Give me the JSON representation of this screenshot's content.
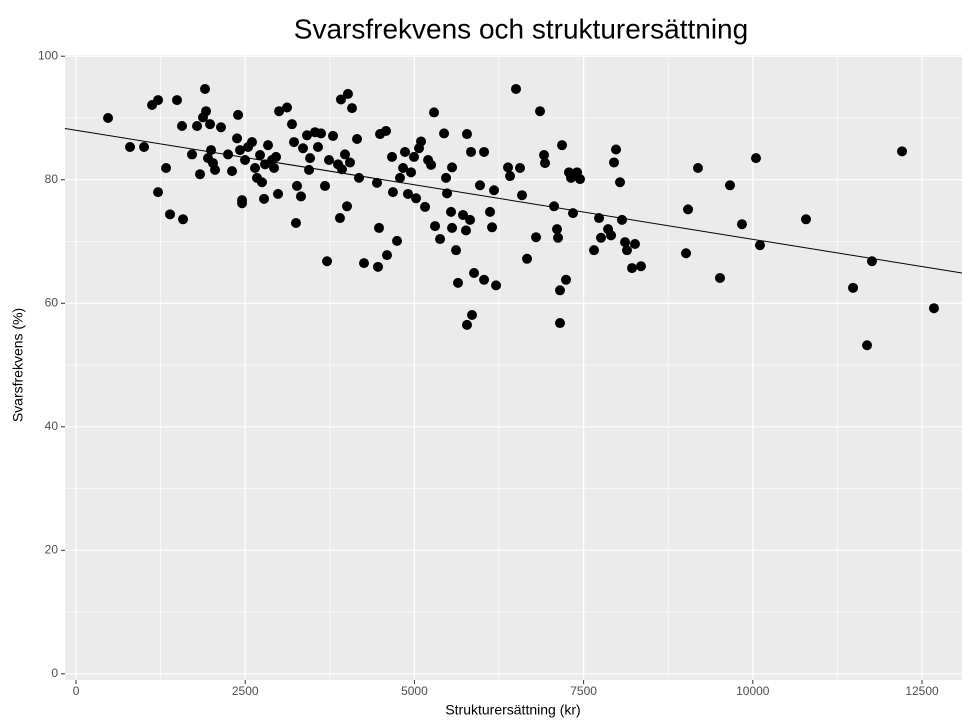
{
  "chart_data": {
    "type": "scatter",
    "title": "Svarsfrekvens och strukturersättning",
    "x_label": "Strukturersättning (kr)",
    "y_label": "Svarsfrekvens (%)",
    "xlim": [
      -163,
      13091
    ],
    "ylim": [
      -1,
      100.2
    ],
    "xticks": [
      0,
      2500,
      5000,
      7500,
      10000,
      12500
    ],
    "yticks": [
      0,
      20,
      40,
      60,
      80,
      100
    ],
    "grid": true,
    "color": "#000000",
    "x": [
      473,
      798,
      1005,
      1123,
      1212,
      1212,
      1330,
      1389,
      1492,
      1566,
      1581,
      1714,
      1788,
      1832,
      1876,
      1906,
      1921,
      1950,
      1980,
      1995,
      2024,
      2054,
      2142,
      2246,
      2305,
      2394,
      2379,
      2423,
      2453,
      2453,
      2497,
      2542,
      2600,
      2645,
      2674,
      2719,
      2748,
      2793,
      2778,
      2837,
      2896,
      2926,
      2955,
      2985,
      3000,
      3118,
      3191,
      3221,
      3265,
      3250,
      3324,
      3354,
      3413,
      3458,
      3443,
      3531,
      3575,
      3620,
      3679,
      3709,
      3738,
      3797,
      3871,
      3900,
      3915,
      3930,
      3974,
      4004,
      4018,
      4048,
      4078,
      4152,
      4181,
      4255,
      4447,
      4462,
      4477,
      4492,
      4580,
      4595,
      4669,
      4683,
      4743,
      4787,
      4832,
      4861,
      4905,
      4950,
      4994,
      5024,
      5068,
      5098,
      5157,
      5202,
      5246,
      5290,
      5305,
      5379,
      5438,
      5467,
      5482,
      5556,
      5541,
      5556,
      5615,
      5644,
      5718,
      5762,
      5777,
      5777,
      5822,
      5836,
      5851,
      5881,
      5969,
      6029,
      6029,
      6117,
      6147,
      6176,
      6206,
      6383,
      6413,
      6501,
      6560,
      6590,
      6664,
      6797,
      6856,
      6915,
      6930,
      7063,
      7107,
      7122,
      7151,
      7151,
      7181,
      7240,
      7284,
      7314,
      7343,
      7403,
      7447,
      7654,
      7728,
      7757,
      7861,
      7905,
      7949,
      7979,
      8038,
      8067,
      8112,
      8141,
      8215,
      8259,
      8348,
      9013,
      9043,
      9190,
      9515,
      9663,
      9840,
      10047,
      10106,
      10786,
      11481,
      11688,
      11761,
      12205,
      12677
    ],
    "y": [
      90.0,
      85.3,
      85.3,
      92.1,
      92.9,
      78.0,
      81.9,
      74.4,
      92.9,
      88.7,
      73.6,
      84.1,
      88.7,
      80.9,
      90.1,
      94.7,
      91.1,
      83.5,
      89.0,
      84.8,
      82.7,
      81.6,
      88.5,
      84.1,
      81.4,
      90.5,
      86.7,
      84.8,
      76.7,
      76.2,
      83.2,
      85.3,
      86.1,
      81.9,
      80.3,
      84.0,
      79.6,
      82.5,
      76.9,
      85.6,
      83.2,
      81.9,
      83.7,
      77.7,
      91.1,
      91.7,
      89.0,
      86.1,
      79.0,
      73.0,
      77.3,
      85.1,
      87.2,
      83.5,
      81.6,
      87.7,
      85.3,
      87.5,
      79.0,
      66.8,
      83.2,
      87.1,
      82.5,
      73.8,
      93.0,
      81.7,
      84.1,
      75.7,
      93.9,
      82.8,
      91.6,
      86.6,
      80.3,
      66.5,
      79.5,
      65.9,
      72.2,
      87.4,
      87.9,
      67.8,
      83.7,
      78.0,
      70.1,
      80.3,
      81.9,
      84.5,
      77.7,
      81.2,
      83.7,
      77.0,
      85.1,
      86.2,
      75.6,
      83.2,
      82.4,
      90.9,
      72.5,
      70.4,
      87.5,
      80.3,
      77.8,
      82.0,
      74.8,
      72.2,
      68.6,
      63.3,
      74.3,
      71.8,
      87.4,
      56.5,
      73.5,
      84.5,
      58.1,
      64.9,
      79.1,
      84.5,
      63.8,
      74.8,
      72.3,
      78.3,
      62.9,
      82.0,
      80.6,
      94.7,
      81.9,
      77.5,
      67.2,
      70.7,
      91.1,
      84.0,
      82.7,
      75.7,
      72.0,
      70.6,
      62.1,
      56.8,
      85.6,
      63.8,
      81.2,
      80.3,
      74.6,
      81.2,
      80.1,
      68.6,
      73.8,
      70.6,
      72.0,
      71.0,
      82.8,
      84.9,
      79.6,
      73.5,
      69.9,
      68.6,
      65.7,
      69.6,
      66.0,
      68.1,
      75.2,
      81.9,
      64.1,
      79.1,
      72.8,
      83.5,
      69.4,
      73.6,
      62.5,
      53.2,
      66.8,
      84.6,
      59.2
    ],
    "trend_line": {
      "x": [
        -163,
        13091
      ],
      "y": [
        88.3,
        64.9
      ]
    }
  }
}
